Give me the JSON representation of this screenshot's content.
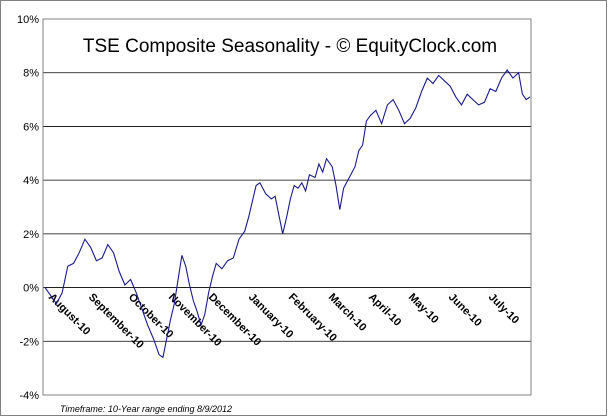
{
  "chart_data": {
    "type": "line",
    "title": "TSE Composite Seasonality - © EquityClock.com",
    "footnote": "Timeframe: 10-Year range ending 8/9/2012",
    "ylim": [
      -4,
      10
    ],
    "yticks": [
      "-4%",
      "-2%",
      "0%",
      "2%",
      "4%",
      "6%",
      "8%",
      "10%"
    ],
    "ytick_values": [
      -4,
      -2,
      0,
      2,
      4,
      6,
      8,
      10
    ],
    "xticks": [
      "August-10",
      "September-10",
      "October-10",
      "November-10",
      "December-10",
      "January-10",
      "February-10",
      "March-10",
      "April-10",
      "May-10",
      "June-10",
      "July-10"
    ],
    "grid": "horizontal",
    "line_color": "#1a1a8c",
    "series": [
      {
        "values": [
          [
            0,
            0.0
          ],
          [
            3,
            -0.3
          ],
          [
            6,
            -0.6
          ],
          [
            9,
            -0.2
          ],
          [
            12,
            0.8
          ],
          [
            15,
            0.9
          ],
          [
            18,
            1.3
          ],
          [
            21,
            1.8
          ],
          [
            24,
            1.5
          ],
          [
            27,
            1.0
          ],
          [
            30,
            1.1
          ],
          [
            33,
            1.6
          ],
          [
            36,
            1.3
          ],
          [
            39,
            0.6
          ],
          [
            42,
            0.1
          ],
          [
            45,
            0.3
          ],
          [
            48,
            -0.2
          ],
          [
            51,
            -0.8
          ],
          [
            54,
            -1.4
          ],
          [
            57,
            -1.9
          ],
          [
            60,
            -2.5
          ],
          [
            62,
            -2.6
          ],
          [
            64,
            -1.9
          ],
          [
            66,
            -1.2
          ],
          [
            68,
            -0.6
          ],
          [
            70,
            0.3
          ],
          [
            72,
            1.2
          ],
          [
            74,
            0.8
          ],
          [
            76,
            0.1
          ],
          [
            78,
            -0.5
          ],
          [
            80,
            -0.9
          ],
          [
            82,
            -1.4
          ],
          [
            84,
            -1.0
          ],
          [
            86,
            -0.2
          ],
          [
            88,
            0.4
          ],
          [
            90,
            0.9
          ],
          [
            93,
            0.7
          ],
          [
            96,
            1.0
          ],
          [
            99,
            1.1
          ],
          [
            102,
            1.8
          ],
          [
            105,
            2.1
          ],
          [
            107,
            2.6
          ],
          [
            109,
            3.2
          ],
          [
            111,
            3.8
          ],
          [
            113,
            3.9
          ],
          [
            116,
            3.5
          ],
          [
            119,
            3.3
          ],
          [
            121,
            3.4
          ],
          [
            123,
            2.7
          ],
          [
            125,
            2.0
          ],
          [
            127,
            2.6
          ],
          [
            129,
            3.3
          ],
          [
            131,
            3.8
          ],
          [
            133,
            3.7
          ],
          [
            135,
            3.9
          ],
          [
            137,
            3.6
          ],
          [
            139,
            4.2
          ],
          [
            142,
            4.1
          ],
          [
            144,
            4.6
          ],
          [
            146,
            4.3
          ],
          [
            148,
            4.8
          ],
          [
            151,
            4.5
          ],
          [
            153,
            3.8
          ],
          [
            155,
            2.9
          ],
          [
            157,
            3.7
          ],
          [
            160,
            4.1
          ],
          [
            163,
            4.5
          ],
          [
            165,
            5.1
          ],
          [
            167,
            5.3
          ],
          [
            169,
            6.2
          ],
          [
            171,
            6.4
          ],
          [
            174,
            6.6
          ],
          [
            177,
            6.1
          ],
          [
            180,
            6.8
          ],
          [
            183,
            7.0
          ],
          [
            186,
            6.6
          ],
          [
            189,
            6.1
          ],
          [
            192,
            6.3
          ],
          [
            195,
            6.7
          ],
          [
            198,
            7.3
          ],
          [
            201,
            7.8
          ],
          [
            204,
            7.6
          ],
          [
            207,
            7.9
          ],
          [
            210,
            7.7
          ],
          [
            213,
            7.5
          ],
          [
            216,
            7.1
          ],
          [
            219,
            6.8
          ],
          [
            222,
            7.2
          ],
          [
            225,
            7.0
          ],
          [
            228,
            6.8
          ],
          [
            231,
            6.9
          ],
          [
            234,
            7.4
          ],
          [
            237,
            7.3
          ],
          [
            240,
            7.8
          ],
          [
            243,
            8.1
          ],
          [
            246,
            7.8
          ],
          [
            249,
            8.0
          ],
          [
            251,
            7.2
          ],
          [
            253,
            7.0
          ],
          [
            255,
            7.1
          ]
        ]
      }
    ]
  }
}
